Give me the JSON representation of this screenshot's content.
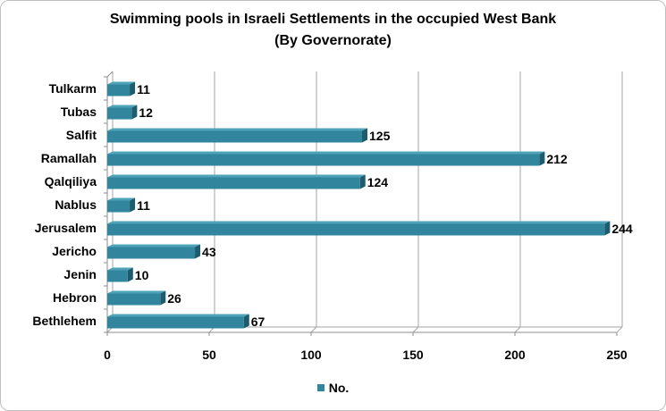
{
  "colors": {
    "bar_front": "#31859c",
    "bar_top": "#4fa3b9",
    "bar_side": "#1d5c6c",
    "grid": "#a6a6a6",
    "wall": "#8c8c8c"
  },
  "chart_data": {
    "type": "bar",
    "orientation": "horizontal",
    "title_line1": "Swimming pools in Israeli Settlements in the occupied West Bank",
    "title_line2": "(By Governorate)",
    "categories": [
      "Tulkarm",
      "Tubas",
      "Salfit",
      "Ramallah",
      "Qalqiliya",
      "Nablus",
      "Jerusalem",
      "Jericho",
      "Jenin",
      "Hebron",
      "Bethlehem"
    ],
    "series": [
      {
        "name": "No.",
        "values": [
          11,
          12,
          125,
          212,
          124,
          11,
          244,
          43,
          10,
          26,
          67
        ]
      }
    ],
    "xticks": [
      "0",
      "50",
      "100",
      "150",
      "200",
      "250"
    ],
    "xlim": [
      0,
      250
    ],
    "grid": true,
    "legend_position": "bottom"
  }
}
